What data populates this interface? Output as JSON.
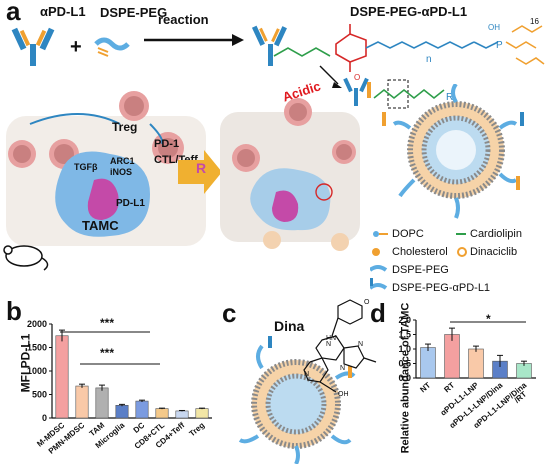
{
  "panel_a": {
    "label": "a",
    "antibody": "αPD-L1",
    "plus": "+",
    "lipid": "DSPE-PEG",
    "arrow_text": "reaction",
    "product": "DSPE-PEG-αPD-L1",
    "acid_text": "Acidic",
    "chem_R": "R",
    "chem_n": "n",
    "chem_16": "16",
    "chem_O": "O",
    "chem_OH": "OH",
    "chem_P": "P",
    "cells": {
      "treg": "Treg",
      "pd1": "PD-1",
      "ctl": "CTL/Teff",
      "arc1": "ARC1",
      "inos": "iNOS",
      "tgfb": "TGFβ",
      "pdl1": "PD-L1",
      "tamc": "TAMC",
      "rx": "R"
    },
    "legend": [
      "DOPC",
      "Cardiolipin",
      "Cholesterol",
      "Dinaciclib",
      "DSPE-PEG",
      "DSPE-PEG-αPD-L1"
    ],
    "colors": {
      "antibody_blue": "#2e86c1",
      "antibody_orange": "#f0a030",
      "peg_blue": "#5dade2",
      "cell_blue": "#7fb8e6",
      "pd_magenta": "#c44aa8",
      "acid_red": "#e0191f",
      "chem_green": "#2e9e4a",
      "chem_red": "#d62828"
    }
  },
  "panel_b": {
    "label": "b",
    "sig1": "***",
    "sig2": "***",
    "chart_data": {
      "type": "bar",
      "ylabel": "MFI PD-L1",
      "categories": [
        "M-MDSC",
        "PMN-MDSC",
        "TAM",
        "Microglia",
        "DC",
        "CD8+CTL",
        "CD4+Teff",
        "Treg"
      ],
      "values": [
        1750,
        680,
        640,
        270,
        360,
        200,
        150,
        200
      ],
      "errors": [
        120,
        40,
        60,
        20,
        20,
        10,
        10,
        10
      ],
      "ylim": [
        0,
        2000
      ],
      "yticks": [
        "0",
        "500",
        "1000",
        "1500",
        "2000"
      ],
      "colors": [
        "#f4a0a0",
        "#f9c9a8",
        "#b0b0b0",
        "#5b7fc7",
        "#7b9be0",
        "#f4c98a",
        "#c8d7f0",
        "#f2e6a6"
      ]
    }
  },
  "panel_c": {
    "label": "c",
    "drug": "Dina",
    "atoms": {
      "N1": "N",
      "N2": "N",
      "N3": "N",
      "N4": "N",
      "HN": "HN",
      "OH": "OH",
      "O": "O"
    }
  },
  "panel_d": {
    "label": "d",
    "sig": "*",
    "chart_data": {
      "type": "bar",
      "ylabel": "Relative abundance of TAMC",
      "categories": [
        "NT",
        "RT",
        "αPD-L1-LNP",
        "αPD-L1-LNP/Dina",
        "αPD-L1-LNP/Dina\n/RT"
      ],
      "values": [
        1.05,
        1.5,
        1.0,
        0.58,
        0.5
      ],
      "errors": [
        0.12,
        0.22,
        0.1,
        0.2,
        0.08
      ],
      "ylim": [
        0,
        2.0
      ],
      "yticks": [
        "0.0",
        "0.5",
        "1.0",
        "1.5",
        "2.0"
      ],
      "colors": [
        "#a9c8ee",
        "#f4a0a0",
        "#f9c9a8",
        "#5b7fc7",
        "#a8e6c8"
      ]
    }
  }
}
